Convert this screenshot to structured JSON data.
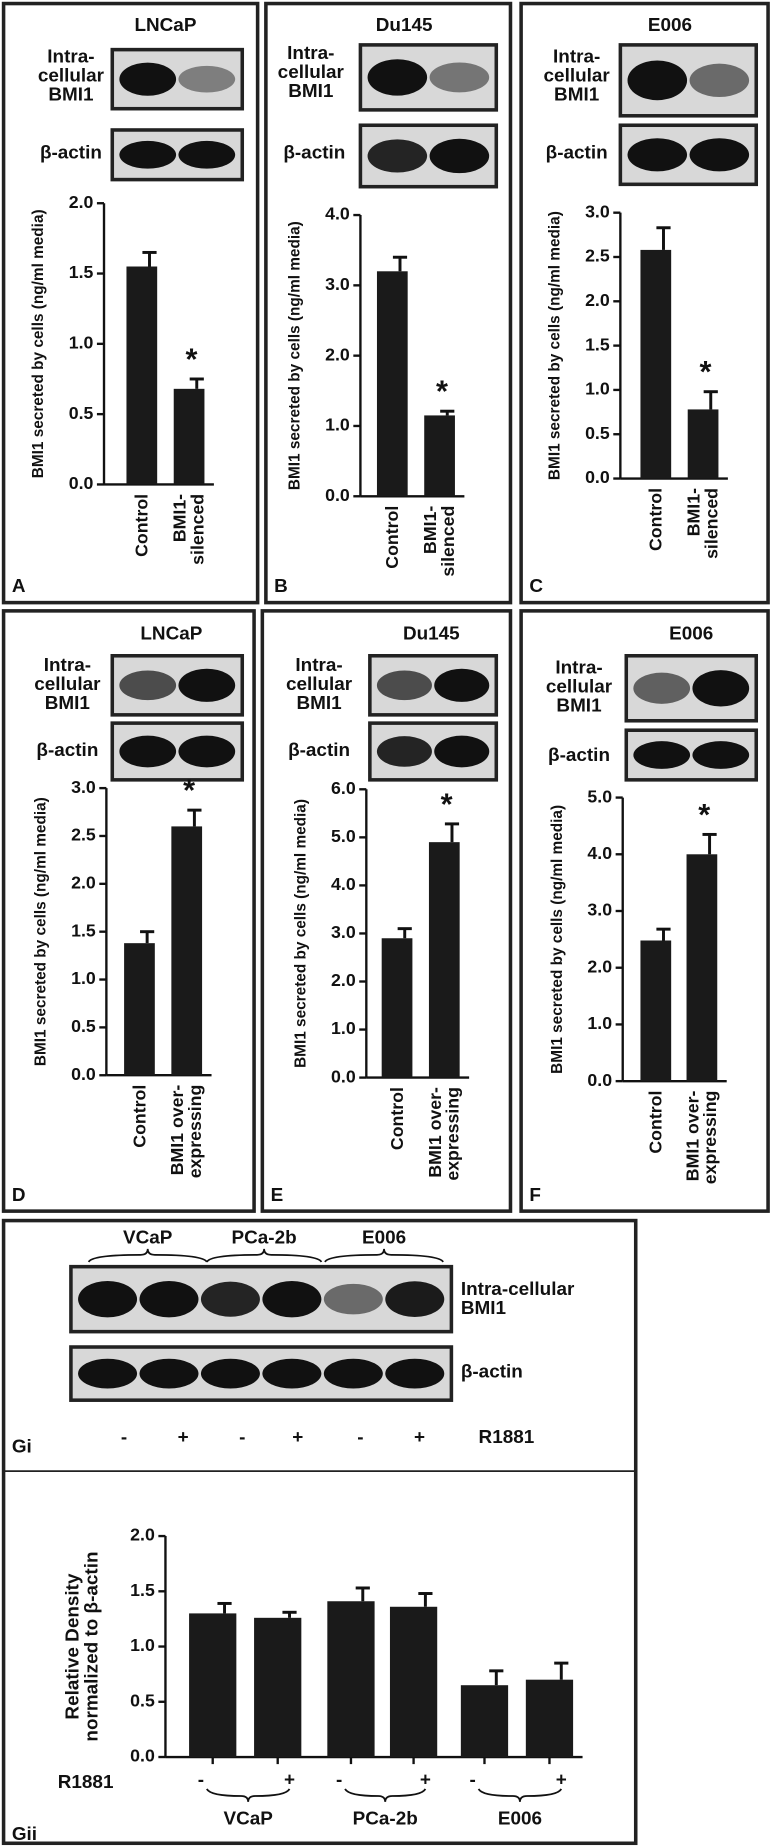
{
  "chart_data": [
    {
      "type": "bar",
      "panel": "A",
      "title": "LNCaP",
      "blot_labels": [
        "Intra-\ncellular\nBMI1",
        "β-actin"
      ],
      "ylabel": "BMI1 secreted by cells (ng/ml media)",
      "categories": [
        "Control",
        "BMI1-\nsilenced"
      ],
      "values": [
        1.55,
        0.68
      ],
      "errors": [
        0.1,
        0.07
      ],
      "significant": [
        false,
        true
      ],
      "significance_label": "*",
      "color": "#1a1a1a",
      "ylim": [
        0,
        2
      ],
      "yticks": [
        {
          "value": 0,
          "label": "0.0"
        },
        0.5,
        {
          "value": 1,
          "label": "1.0"
        },
        1.5,
        {
          "value": 2,
          "label": "2.0"
        }
      ]
    },
    {
      "type": "bar",
      "panel": "B",
      "title": "Du145",
      "blot_labels": [
        "Intra-\ncellular\nBMI1",
        "β-actin"
      ],
      "ylabel": "BMI1 secreted by cells (ng/ml media)",
      "categories": [
        "Control",
        "BMI1-\nsilenced"
      ],
      "values": [
        3.2,
        1.15
      ],
      "errors": [
        0.2,
        0.06
      ],
      "significant": [
        false,
        true
      ],
      "significance_label": "*",
      "color": "#1a1a1a",
      "ylim": [
        0,
        4
      ],
      "yticks": [
        {
          "value": 0,
          "label": "0.0"
        },
        {
          "value": 1,
          "label": "1.0"
        },
        {
          "value": 2,
          "label": "2.0"
        },
        {
          "value": 3,
          "label": "3.0"
        },
        {
          "value": 4,
          "label": "4.0"
        }
      ]
    },
    {
      "type": "bar",
      "panel": "C",
      "title": "E006",
      "blot_labels": [
        "Intra-\ncellular\nBMI1",
        "β-actin"
      ],
      "ylabel": "BMI1 secreted by cells (ng/ml media)",
      "categories": [
        "Control",
        "BMI1-\nsilenced"
      ],
      "values": [
        2.58,
        0.78
      ],
      "errors": [
        0.25,
        0.2
      ],
      "significant": [
        false,
        true
      ],
      "significance_label": "*",
      "color": "#1a1a1a",
      "ylim": [
        0,
        3
      ],
      "yticks": [
        {
          "value": 0,
          "label": "0.0"
        },
        0.5,
        {
          "value": 1,
          "label": "1.0"
        },
        1.5,
        {
          "value": 2,
          "label": "2.0"
        },
        2.5,
        {
          "value": 3,
          "label": "3.0"
        }
      ]
    },
    {
      "type": "bar",
      "panel": "D",
      "title": "LNCaP",
      "blot_labels": [
        "Intra-\ncellular\nBMI1",
        "β-actin"
      ],
      "ylabel": "BMI1 secreted by cells (ng/ml media)",
      "categories": [
        "Control",
        "BMI1 over-\nexpressing"
      ],
      "values": [
        1.38,
        2.6
      ],
      "errors": [
        0.12,
        0.17
      ],
      "significant": [
        false,
        true
      ],
      "significance_label": "*",
      "color": "#1a1a1a",
      "ylim": [
        0,
        3
      ],
      "yticks": [
        {
          "value": 0,
          "label": "0.0"
        },
        0.5,
        {
          "value": 1,
          "label": "1.0"
        },
        1.5,
        {
          "value": 2,
          "label": "2.0"
        },
        2.5,
        {
          "value": 3,
          "label": "3.0"
        }
      ]
    },
    {
      "type": "bar",
      "panel": "E",
      "title": "Du145",
      "blot_labels": [
        "Intra-\ncellular\nBMI1",
        "β-actin"
      ],
      "ylabel": "BMI1 secreted by cells (ng/ml media)",
      "categories": [
        "Control",
        "BMI1 over-\nexpressing"
      ],
      "values": [
        2.9,
        4.9
      ],
      "errors": [
        0.2,
        0.38
      ],
      "significant": [
        false,
        true
      ],
      "significance_label": "*",
      "color": "#1a1a1a",
      "ylim": [
        0,
        6
      ],
      "yticks": [
        {
          "value": 0,
          "label": "0.0"
        },
        {
          "value": 1,
          "label": "1.0"
        },
        {
          "value": 2,
          "label": "2.0"
        },
        {
          "value": 3,
          "label": "3.0"
        },
        {
          "value": 4,
          "label": "4.0"
        },
        {
          "value": 5,
          "label": "5.0"
        },
        {
          "value": 6,
          "label": "6.0"
        }
      ]
    },
    {
      "type": "bar",
      "panel": "F",
      "title": "E006",
      "blot_labels": [
        "Intra-\ncellular\nBMI1",
        "β-actin"
      ],
      "ylabel": "BMI1 secreted by cells (ng/ml media)",
      "categories": [
        "Control",
        "BMI1 over-\nexpressing"
      ],
      "values": [
        2.48,
        4.0
      ],
      "errors": [
        0.2,
        0.35
      ],
      "significant": [
        false,
        true
      ],
      "significance_label": "*",
      "color": "#1a1a1a",
      "ylim": [
        0,
        5
      ],
      "yticks": [
        {
          "value": 0,
          "label": "0.0"
        },
        {
          "value": 1,
          "label": "1.0"
        },
        {
          "value": 2,
          "label": "2.0"
        },
        {
          "value": 3,
          "label": "3.0"
        },
        {
          "value": 4,
          "label": "4.0"
        },
        {
          "value": 5,
          "label": "5.0"
        }
      ]
    },
    {
      "type": "bar",
      "panel": "Gii",
      "ylabel": "Relative Density\nnormalized to β-actin",
      "x_row_label": "R1881",
      "groups": [
        "VCaP",
        "PCa-2b",
        "E006"
      ],
      "categories": [
        "-",
        "+",
        "-",
        "+",
        "-",
        "+"
      ],
      "values": [
        1.3,
        1.26,
        1.41,
        1.36,
        0.65,
        0.7
      ],
      "errors": [
        0.09,
        0.05,
        0.12,
        0.12,
        0.13,
        0.15
      ],
      "color": "#1a1a1a",
      "ylim": [
        0,
        2
      ],
      "yticks": [
        {
          "value": 0,
          "label": "0.0"
        },
        0.5,
        {
          "value": 1,
          "label": "1.0"
        },
        1.5,
        {
          "value": 2,
          "label": "2.0"
        }
      ]
    }
  ],
  "panel_gi": {
    "panel": "Gi",
    "groups": [
      "VCaP",
      "PCa-2b",
      "E006"
    ],
    "blot_labels": [
      "Intra-cellular\nBMI1",
      "β-actin"
    ],
    "lanes": [
      "-",
      "+",
      "-",
      "+",
      "-",
      "+"
    ],
    "lane_row_label": "R1881"
  }
}
